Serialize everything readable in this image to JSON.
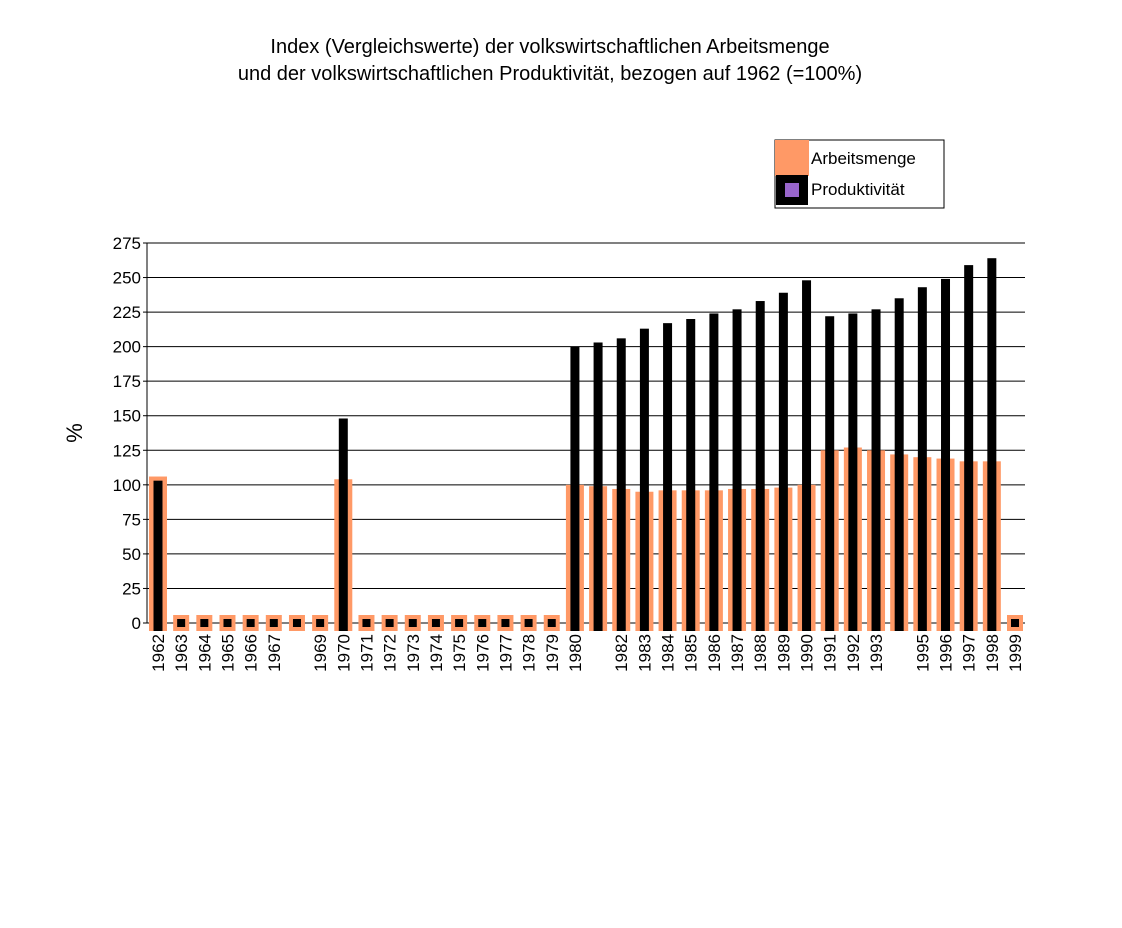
{
  "chart_data": {
    "type": "bar",
    "title": "Index (Vergleichswerte) der volkswirtschaftlichen Arbeitsmenge",
    "subtitle": "und der volkswirtschaftlichen Produktivität, bezogen auf 1962 (=100%)",
    "y_label": "%",
    "categories": [
      "1962",
      "1963",
      "1964",
      "1965",
      "1966",
      "1967",
      null,
      "1969",
      "1970",
      "1971",
      "1972",
      "1973",
      "1974",
      "1975",
      "1976",
      "1977",
      "1978",
      "1979",
      "1980",
      null,
      "1982",
      "1983",
      "1984",
      "1985",
      "1986",
      "1987",
      "1988",
      "1989",
      "1990",
      "1991",
      "1992",
      "1993",
      null,
      "1995",
      "1996",
      "1997",
      "1998",
      "1999"
    ],
    "series": [
      {
        "name": "Arbeitsmenge",
        "color": "#ff9966",
        "values": [
          106,
          0,
          0,
          0,
          0,
          0,
          0,
          0,
          104,
          0,
          0,
          0,
          0,
          0,
          0,
          0,
          0,
          0,
          100,
          99,
          97,
          95,
          96,
          96,
          96,
          97,
          97,
          98,
          100,
          125,
          127,
          125,
          122,
          120,
          119,
          117,
          117,
          0
        ]
      },
      {
        "name": "Produktivität",
        "color": "#000000",
        "values": [
          103,
          0,
          0,
          0,
          0,
          0,
          0,
          0,
          148,
          0,
          0,
          0,
          0,
          0,
          0,
          0,
          0,
          0,
          200,
          203,
          206,
          213,
          217,
          220,
          224,
          227,
          233,
          239,
          248,
          222,
          224,
          227,
          235,
          243,
          249,
          259,
          264,
          0
        ]
      }
    ],
    "ylim": [
      0,
      275
    ],
    "yticks": [
      0,
      25,
      50,
      75,
      100,
      125,
      150,
      175,
      200,
      225,
      250,
      275
    ],
    "grid": true
  }
}
